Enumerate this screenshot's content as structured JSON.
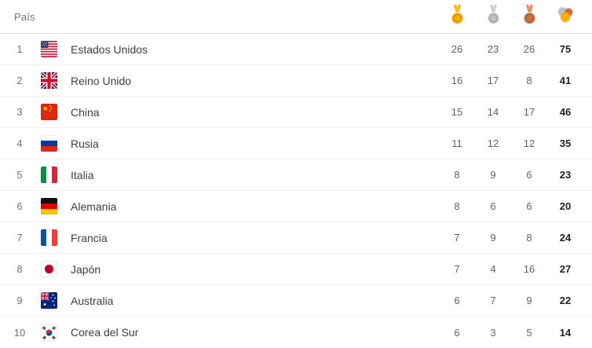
{
  "table": {
    "country_column_label": "País",
    "medal_columns": [
      {
        "name": "gold-medal-icon"
      },
      {
        "name": "silver-medal-icon"
      },
      {
        "name": "bronze-medal-icon"
      },
      {
        "name": "total-medals-icon"
      }
    ],
    "rows": [
      {
        "rank": "1",
        "flag": "us",
        "flag_name": "estados-unidos-flag",
        "country": "Estados Unidos",
        "gold": "26",
        "silver": "23",
        "bronze": "26",
        "total": "75"
      },
      {
        "rank": "2",
        "flag": "uk",
        "flag_name": "reino-unido-flag",
        "country": "Reino Unido",
        "gold": "16",
        "silver": "17",
        "bronze": "8",
        "total": "41"
      },
      {
        "rank": "3",
        "flag": "cn",
        "flag_name": "china-flag",
        "country": "China",
        "gold": "15",
        "silver": "14",
        "bronze": "17",
        "total": "46"
      },
      {
        "rank": "4",
        "flag": "ru",
        "flag_name": "rusia-flag",
        "country": "Rusia",
        "gold": "11",
        "silver": "12",
        "bronze": "12",
        "total": "35"
      },
      {
        "rank": "5",
        "flag": "it",
        "flag_name": "italia-flag",
        "country": "Italia",
        "gold": "8",
        "silver": "9",
        "bronze": "6",
        "total": "23"
      },
      {
        "rank": "6",
        "flag": "de",
        "flag_name": "alemania-flag",
        "country": "Alemania",
        "gold": "8",
        "silver": "6",
        "bronze": "6",
        "total": "20"
      },
      {
        "rank": "7",
        "flag": "fr",
        "flag_name": "francia-flag",
        "country": "Francia",
        "gold": "7",
        "silver": "9",
        "bronze": "8",
        "total": "24"
      },
      {
        "rank": "8",
        "flag": "jp",
        "flag_name": "japon-flag",
        "country": "Japón",
        "gold": "7",
        "silver": "4",
        "bronze": "16",
        "total": "27"
      },
      {
        "rank": "9",
        "flag": "au",
        "flag_name": "australia-flag",
        "country": "Australia",
        "gold": "6",
        "silver": "7",
        "bronze": "9",
        "total": "22"
      },
      {
        "rank": "10",
        "flag": "kr",
        "flag_name": "corea-del-sur-flag",
        "country": "Corea del Sur",
        "gold": "6",
        "silver": "3",
        "bronze": "5",
        "total": "14"
      }
    ]
  },
  "colors": {
    "gold": "#f9ab00",
    "gold_ribbon": "#fbbc04",
    "silver": "#bdc1c6",
    "silver_ribbon": "#cdd1d5",
    "bronze": "#c9713f",
    "bronze_ribbon": "#e8915f",
    "header_text": "#70757a",
    "country_text": "#3c4043",
    "count_text": "#5f6368",
    "total_text": "#202124",
    "header_border": "#e0e0e0",
    "row_border": "#ebedf0"
  }
}
